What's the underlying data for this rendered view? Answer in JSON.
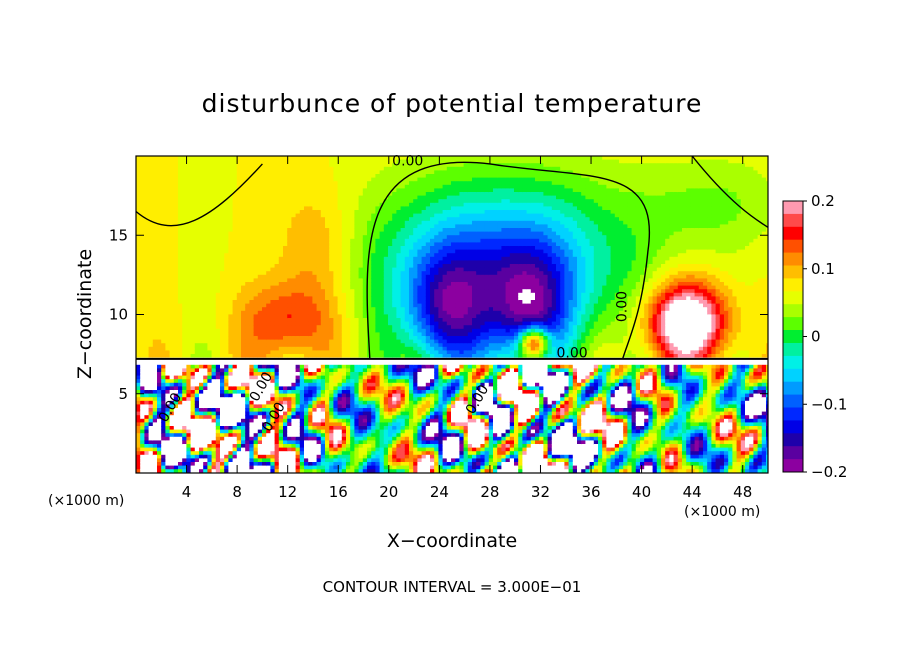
{
  "chart_data": {
    "type": "heatmap",
    "title": "disturbunce of potential temperature",
    "xlabel": "X−coordinate",
    "ylabel": "Z−coordinate",
    "x_unit": "(×1000 m)",
    "z_unit": "(×1000 m)",
    "xlim": [
      0,
      50
    ],
    "ylim": [
      0,
      20
    ],
    "x_ticks": [
      4,
      8,
      12,
      16,
      20,
      24,
      28,
      32,
      36,
      40,
      44,
      48
    ],
    "x_tick_labels": [
      "4",
      "8",
      "12",
      "16",
      "20",
      "24",
      "28",
      "32",
      "36",
      "40",
      "44",
      "48"
    ],
    "y_ticks": [
      5,
      10,
      15
    ],
    "y_tick_labels": [
      "5",
      "10",
      "15"
    ],
    "colorbar": {
      "range": [
        -0.2,
        0.2
      ],
      "ticks": [
        0.2,
        0.1,
        0,
        -0.1,
        -0.2
      ],
      "tick_labels": [
        "0.2",
        "0.1",
        "0",
        "−0.1",
        "−0.2"
      ],
      "levels": [
        {
          "value": 0.2,
          "color": "#ff9ab0"
        },
        {
          "value": 0.18,
          "color": "#ff4a4a"
        },
        {
          "value": 0.16,
          "color": "#ff0000"
        },
        {
          "value": 0.14,
          "color": "#ff5000"
        },
        {
          "value": 0.12,
          "color": "#ff8c00"
        },
        {
          "value": 0.1,
          "color": "#ffbe00"
        },
        {
          "value": 0.08,
          "color": "#ffee00"
        },
        {
          "value": 0.06,
          "color": "#e6ff00"
        },
        {
          "value": 0.04,
          "color": "#aaff00"
        },
        {
          "value": 0.02,
          "color": "#5cff00"
        },
        {
          "value": 0.0,
          "color": "#00ee30"
        },
        {
          "value": -0.02,
          "color": "#00f0a0"
        },
        {
          "value": -0.04,
          "color": "#00f0e6"
        },
        {
          "value": -0.06,
          "color": "#00d2ff"
        },
        {
          "value": -0.08,
          "color": "#009bff"
        },
        {
          "value": -0.1,
          "color": "#0060ff"
        },
        {
          "value": -0.12,
          "color": "#0028ff"
        },
        {
          "value": -0.14,
          "color": "#0000e6"
        },
        {
          "value": -0.16,
          "color": "#1e00aa"
        },
        {
          "value": -0.18,
          "color": "#5a00a0"
        },
        {
          "value": -0.2,
          "color": "#8c00a0"
        }
      ]
    },
    "contour_labels": [
      {
        "text": "0.00",
        "x": 21.5,
        "z": 19.4
      },
      {
        "text": "0.00",
        "x": 38.8,
        "z": 10.5
      },
      {
        "text": "0.00",
        "x": 3.0,
        "z": 4.0
      },
      {
        "text": "0.00",
        "x": 10.2,
        "z": 5.3
      },
      {
        "text": "0.00",
        "x": 11.2,
        "z": 3.4
      },
      {
        "text": "0.00",
        "x": 27.3,
        "z": 4.5
      },
      {
        "text": "0.00",
        "x": 34.5,
        "z": 7.3
      }
    ],
    "features": {
      "tropopause_z": 7.2,
      "negative_plumes": [
        {
          "x": 24.5,
          "z": 12.0,
          "amplitude": -0.2
        },
        {
          "x": 31.0,
          "z": 12.0,
          "amplitude": -0.2
        }
      ],
      "positive_warm_regions": [
        {
          "x": 43.5,
          "z": 9.5,
          "amplitude": 0.2
        },
        {
          "x": 12.0,
          "z": 9.5,
          "amplitude": 0.15
        }
      ],
      "zero_contour_upper_x_range": [
        18.5,
        40.5
      ]
    },
    "grid": false,
    "legend": "right"
  },
  "footer": "CONTOUR INTERVAL = 3.000E−01"
}
